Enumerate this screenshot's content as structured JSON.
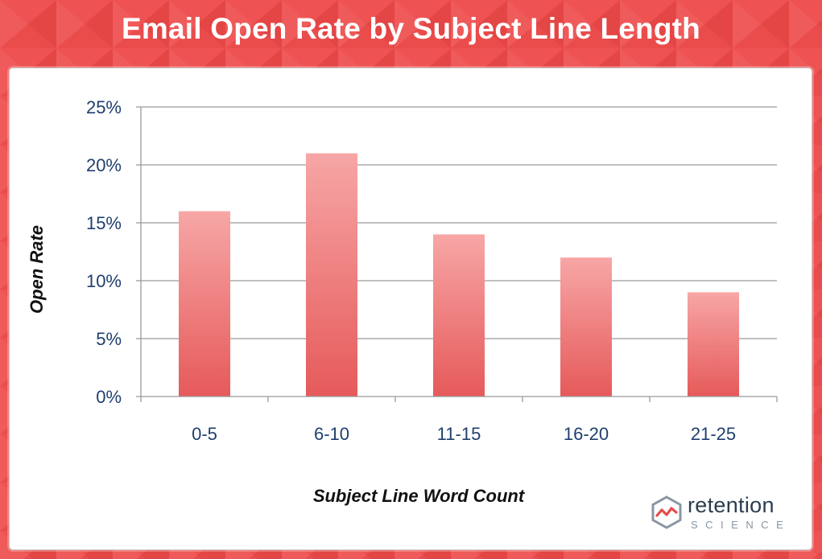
{
  "title": "Email Open Rate by Subject Line Length",
  "colors": {
    "background": "#ea4c4c",
    "bar_top": "#f7a6a6",
    "bar_bottom": "#e65a5a",
    "tick_text": "#1f3f6e"
  },
  "logo": {
    "icon": "retention-science-logo-icon",
    "word": "retention",
    "sub": "SCIENCE"
  },
  "chart_data": {
    "type": "bar",
    "categories": [
      "0-5",
      "6-10",
      "11-15",
      "16-20",
      "21-25"
    ],
    "values": [
      16,
      21,
      14,
      12,
      9
    ],
    "xlabel": "Subject Line Word Count",
    "ylabel": "Open Rate",
    "ylim": [
      0,
      25
    ],
    "yticks": [
      "0%",
      "5%",
      "10%",
      "15%",
      "20%",
      "25%"
    ],
    "grid": true
  }
}
